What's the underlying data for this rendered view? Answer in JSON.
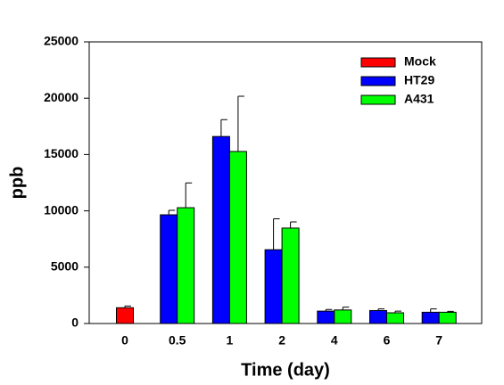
{
  "chart_data": {
    "type": "bar",
    "xlabel": "Time (day)",
    "ylabel": "ppb",
    "categories": [
      "0",
      "0.5",
      "1",
      "2",
      "4",
      "6",
      "7"
    ],
    "series": [
      {
        "name": "Mock",
        "color": "#ff0000",
        "values": [
          1400,
          null,
          null,
          null,
          null,
          null,
          null
        ],
        "errors": [
          150,
          null,
          null,
          null,
          null,
          null,
          null
        ]
      },
      {
        "name": "HT29",
        "color": "#0000ff",
        "values": [
          null,
          9650,
          16600,
          6550,
          1100,
          1150,
          1000
        ],
        "errors": [
          null,
          400,
          1500,
          2750,
          150,
          150,
          300
        ]
      },
      {
        "name": "A431",
        "color": "#00ff00",
        "values": [
          null,
          10280,
          15270,
          8470,
          1200,
          950,
          1000
        ],
        "errors": [
          null,
          2200,
          4900,
          550,
          250,
          150,
          80
        ]
      }
    ],
    "ylim": [
      0,
      25000
    ],
    "yticks": [
      0,
      5000,
      10000,
      15000,
      20000,
      25000
    ],
    "legend": "upper-right",
    "error_bars": "up"
  }
}
